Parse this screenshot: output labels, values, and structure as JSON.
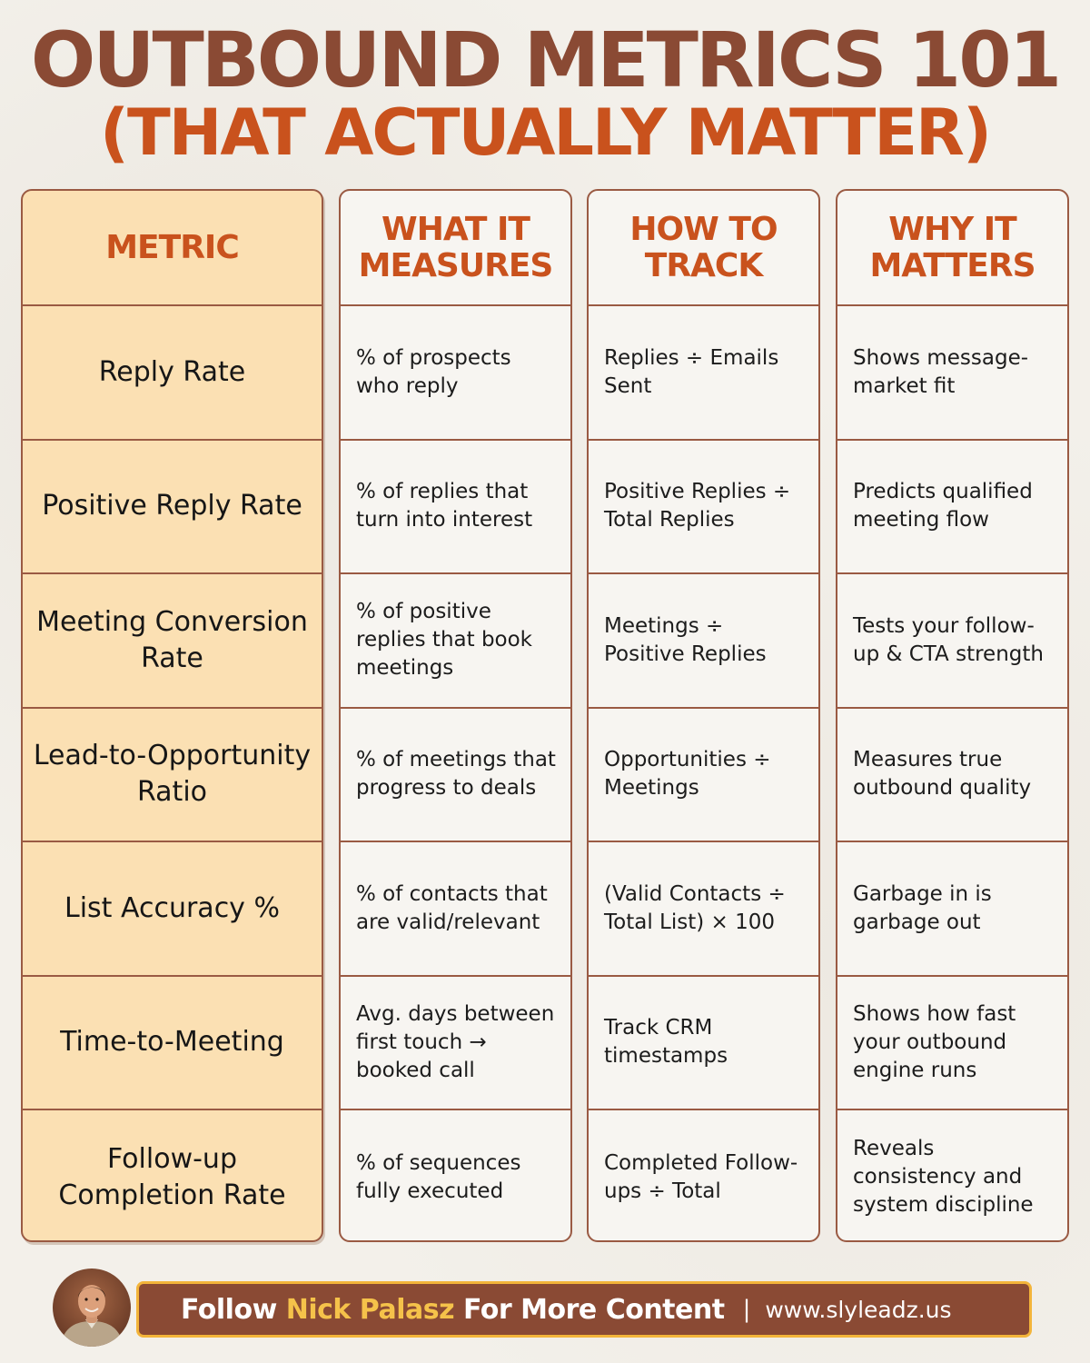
{
  "title": "OUTBOUND METRICS 101",
  "subtitle": "(THAT ACTUALLY MATTER)",
  "columns": [
    {
      "header": "METRIC"
    },
    {
      "header": "WHAT IT MEASURES"
    },
    {
      "header": "HOW TO TRACK"
    },
    {
      "header": "WHY IT MATTERS"
    }
  ],
  "rows": [
    {
      "metric": "Reply Rate",
      "measures": "% of prospects who reply",
      "track": "Replies ÷ Emails Sent",
      "why": "Shows message-market fit"
    },
    {
      "metric": "Positive Reply Rate",
      "measures": "% of replies that turn into interest",
      "track": "Positive Replies ÷ Total Replies",
      "why": "Predicts qualified meeting flow"
    },
    {
      "metric": "Meeting Conversion Rate",
      "measures": "% of positive replies that book meetings",
      "track": "Meetings ÷ Positive Replies",
      "why": "Tests your follow-up & CTA strength"
    },
    {
      "metric": "Lead-to-Opportunity Ratio",
      "measures": "% of meetings that progress to deals",
      "track": "Opportunities ÷ Meetings",
      "why": "Measures true outbound quality"
    },
    {
      "metric": "List Accuracy %",
      "measures": "% of contacts that are valid/relevant",
      "track": "(Valid Contacts ÷ Total List) × 100",
      "why": "Garbage in is garbage out"
    },
    {
      "metric": "Time-to-Meeting",
      "measures": "Avg. days between first touch → booked call",
      "track": "Track CRM timestamps",
      "why": "Shows how fast your outbound engine runs"
    },
    {
      "metric": "Follow-up Completion Rate",
      "measures": "% of sequences fully executed",
      "track": "Completed Follow-ups ÷ Total",
      "why": "Reveals consistency and system discipline"
    }
  ],
  "footer": {
    "prefix": "Follow ",
    "name": "Nick Palasz",
    "suffix": " For More Content",
    "separator": "|",
    "url": "www.slyleadz.us"
  },
  "colors": {
    "brown": "#8a4a34",
    "orange": "#c9521d",
    "metric_bg": "#fbe0b3",
    "gold": "#f3b43a"
  }
}
